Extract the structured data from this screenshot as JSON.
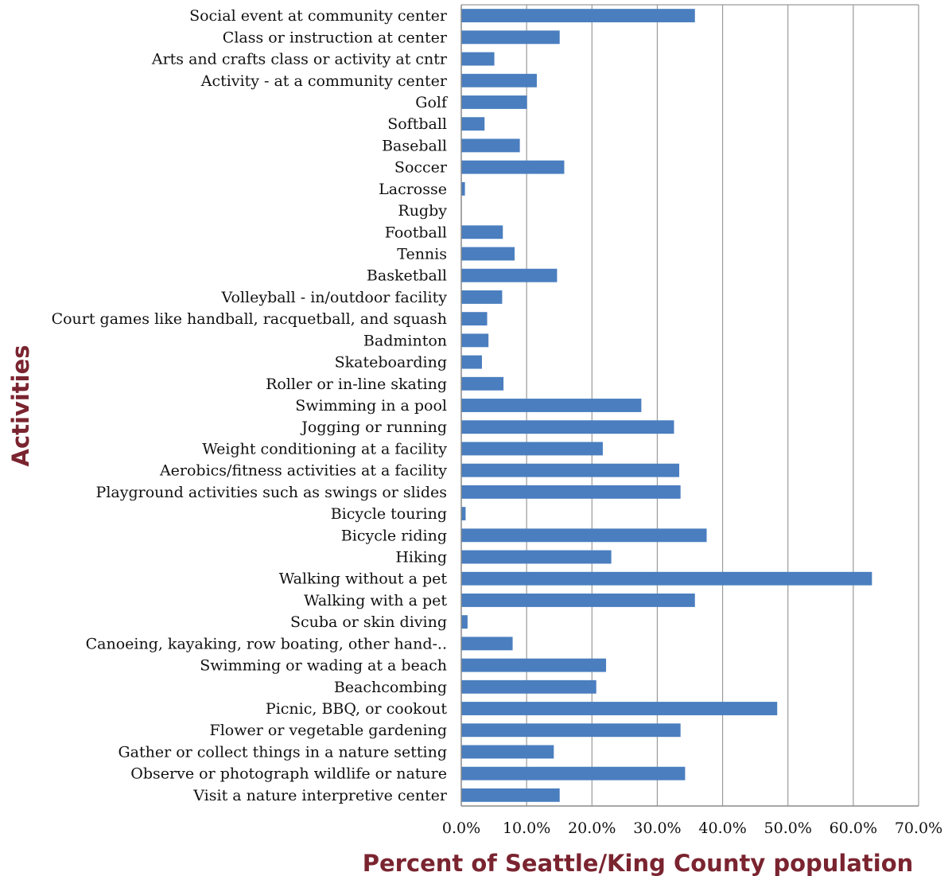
{
  "chart_data": {
    "type": "bar",
    "orientation": "horizontal",
    "title": "",
    "xlabel": "Percent of Seattle/King County population",
    "ylabel": "Activities",
    "xlim": [
      0,
      70
    ],
    "x_ticks": [
      0,
      10,
      20,
      30,
      40,
      50,
      60,
      70
    ],
    "x_tick_labels": [
      "0.0%",
      "10.0%",
      "20.0%",
      "30.0%",
      "40.0%",
      "50.0%",
      "60.0%",
      "70.0%"
    ],
    "grid": true,
    "legend": "none",
    "bar_color": "#4a7ebf",
    "axis_title_color": "#7a2430",
    "categories": [
      "Social event at community center",
      "Class or instruction at center",
      "Arts and crafts class or activity at cntr",
      "Activity - at a community center",
      "Golf",
      "Softball",
      "Baseball",
      "Soccer",
      "Lacrosse",
      "Rugby",
      "Football",
      "Tennis",
      "Basketball",
      "Volleyball - in/outdoor facility",
      "Court games like handball, racquetball, and squash",
      "Badminton",
      "Skateboarding",
      "Roller or in-line skating",
      "Swimming in a pool",
      "Jogging or running",
      "Weight conditioning at a facility",
      "Aerobics/fitness activities at a facility",
      "Playground activities such as swings or slides",
      "Bicycle touring",
      "Bicycle riding",
      "Hiking",
      "Walking without a pet",
      "Walking with a pet",
      "Scuba or skin diving",
      "Canoeing, kayaking, row boating, other hand-..",
      "Swimming or wading at a beach",
      "Beachcombing",
      "Picnic, BBQ, or cookout",
      "Flower or vegetable gardening",
      "Gather or collect things in a nature setting",
      "Observe or photograph wildlife or nature",
      "Visit a nature interpretive center"
    ],
    "values": [
      35.7,
      15.0,
      5.0,
      11.5,
      10.0,
      3.5,
      8.9,
      15.7,
      0.5,
      0.0,
      6.3,
      8.1,
      14.6,
      6.2,
      3.9,
      4.1,
      3.1,
      6.4,
      27.5,
      32.5,
      21.6,
      33.3,
      33.5,
      0.6,
      37.5,
      22.9,
      62.8,
      35.7,
      0.9,
      7.8,
      22.1,
      20.6,
      48.3,
      33.5,
      14.1,
      34.2,
      15.0
    ]
  }
}
